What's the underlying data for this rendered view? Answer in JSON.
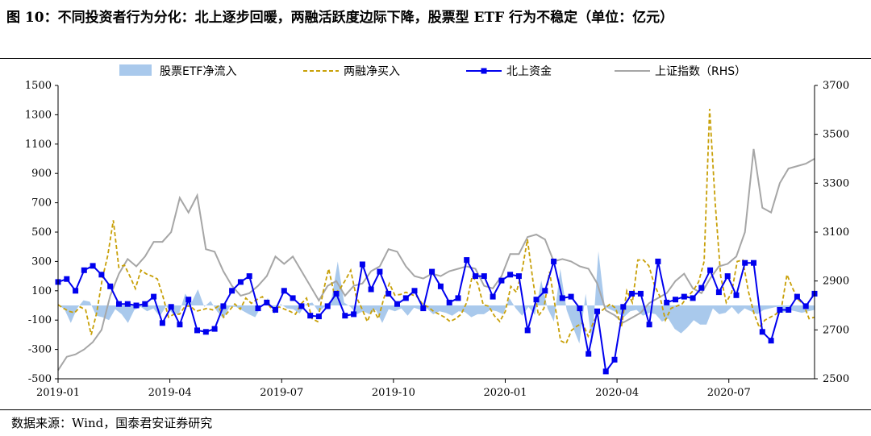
{
  "figure": {
    "title": "图 10：不同投资者行为分化：北上逐步回暖，两融活跃度边际下降，股票型 ETF 行为不稳定（单位：亿元）",
    "source": "数据来源：Wind，国泰君安证券研究"
  },
  "chart_data": {
    "type": "line",
    "title": "图 10：不同投资者行为分化：北上逐步回暖，两融活跃度边际下降，股票型 ETF 行为不稳定（单位：亿元）",
    "left_axis": {
      "ylim": [
        -500,
        1500
      ],
      "ticks": [
        -500,
        -300,
        -100,
        100,
        300,
        500,
        700,
        900,
        1100,
        1300,
        1500
      ]
    },
    "right_axis": {
      "ylim": [
        2500,
        3700
      ],
      "ticks": [
        2500,
        2700,
        2900,
        3100,
        3300,
        3500,
        3700
      ],
      "label": "RHS"
    },
    "x_axis": {
      "ticks": [
        "2019-01",
        "2019-04",
        "2019-07",
        "2019-10",
        "2020-01",
        "2020-04",
        "2020-07"
      ],
      "start": "2019-01",
      "period": "weekly"
    },
    "grid": false,
    "legend_position": "top",
    "series": [
      {
        "name": "股票ETF净流入",
        "style": "area",
        "axis": "left",
        "color": "#a9c9ec",
        "values": [
          5,
          -25,
          -120,
          -20,
          35,
          25,
          -70,
          -80,
          -100,
          -25,
          -60,
          -120,
          -30,
          -10,
          -40,
          -20,
          -75,
          -5,
          -55,
          -60,
          80,
          20,
          110,
          -10,
          30,
          -40,
          -90,
          -10,
          -10,
          -35,
          -60,
          -80,
          -5,
          50,
          -60,
          10,
          -20,
          -25,
          -55,
          10,
          20,
          -45,
          -5,
          40,
          300,
          20,
          -10,
          -60,
          -40,
          -60,
          -30,
          -120,
          -25,
          -40,
          -20,
          -70,
          -15,
          -30,
          -20,
          -60,
          -40,
          -50,
          -70,
          -40,
          -45,
          -80,
          -60,
          -60,
          -30,
          -40,
          -60,
          50,
          -20,
          -70,
          -10,
          -65,
          170,
          -20,
          -110,
          250,
          -30,
          -150,
          -260,
          80,
          -270,
          370,
          -10,
          -30,
          -50,
          -80,
          -40,
          -30,
          -70,
          -50,
          -60,
          -110,
          -90,
          -160,
          -190,
          -150,
          -100,
          -130,
          -130,
          -20,
          -60,
          -50,
          -10,
          -60,
          -20,
          -40,
          -60,
          -30,
          -20,
          -10,
          -50,
          -30,
          -40,
          -50,
          -40,
          -30
        ]
      },
      {
        "name": "两融净买入",
        "style": "dashed",
        "axis": "left",
        "color": "#c8a008",
        "values": [
          5,
          -20,
          -40,
          -50,
          -10,
          -30,
          -200,
          -50,
          180,
          340,
          580,
          260,
          275,
          200,
          115,
          240,
          215,
          200,
          180,
          60,
          -80,
          -60,
          -60,
          -5,
          -5,
          -40,
          -30,
          -20,
          -30,
          -5,
          -80,
          -35,
          10,
          -25,
          50,
          15,
          40,
          60,
          10,
          -40,
          -10,
          -25,
          -40,
          -60,
          10,
          50,
          -90,
          -110,
          90,
          250,
          80,
          110,
          170,
          240,
          60,
          -20,
          -110,
          -20,
          -90,
          50,
          150,
          70,
          75,
          90,
          75,
          60,
          10,
          -10,
          -40,
          -60,
          -80,
          -110,
          -90,
          -60,
          20,
          200,
          150,
          5,
          -5,
          -70,
          -110,
          -40,
          130,
          90,
          230,
          450,
          170,
          -70,
          -20,
          230,
          0,
          -240,
          -260,
          -170,
          -140,
          -120,
          -210,
          -110,
          -50,
          -20,
          10,
          -20,
          -150,
          100,
          20,
          310,
          310,
          270,
          140,
          60,
          -100,
          -20,
          -5,
          10,
          60,
          100,
          160,
          300,
          1340,
          700,
          200,
          20,
          90,
          300,
          310,
          100,
          -50,
          -150,
          -100,
          -80,
          -60,
          -20,
          210,
          120,
          40,
          10,
          -90,
          -80
        ]
      },
      {
        "name": "北上资金",
        "style": "line-marker",
        "axis": "left",
        "color": "#0000ee",
        "values": [
          160,
          180,
          100,
          240,
          270,
          210,
          130,
          10,
          10,
          0,
          10,
          60,
          -120,
          -10,
          -130,
          40,
          -170,
          -180,
          -160,
          -5,
          100,
          160,
          200,
          -20,
          20,
          -30,
          100,
          50,
          -5,
          -70,
          -75,
          -5,
          80,
          -70,
          -60,
          280,
          110,
          230,
          80,
          10,
          50,
          100,
          -20,
          230,
          130,
          20,
          50,
          310,
          200,
          200,
          60,
          170,
          210,
          200,
          -170,
          40,
          100,
          300,
          50,
          60,
          -20,
          -330,
          -40,
          -450,
          -370,
          -10,
          80,
          80,
          -130,
          300,
          20,
          40,
          60,
          50,
          120,
          240,
          90,
          200,
          70,
          290,
          290,
          -180,
          -240,
          -30,
          -30,
          60,
          -5,
          80
        ]
      },
      {
        "name": "上证指数（RHS）",
        "style": "line",
        "axis": "right",
        "color": "#a6a6a6",
        "values": [
          2535,
          2590,
          2600,
          2620,
          2650,
          2700,
          2840,
          2930,
          2990,
          2960,
          3000,
          3060,
          3060,
          3100,
          3240,
          3180,
          3250,
          3030,
          3020,
          2940,
          2880,
          2840,
          2850,
          2880,
          2920,
          3000,
          2970,
          3000,
          2940,
          2880,
          2820,
          2880,
          2900,
          2840,
          2880,
          2890,
          2940,
          2960,
          3030,
          3020,
          2960,
          2920,
          2910,
          2930,
          2920,
          2940,
          2950,
          2960,
          2950,
          2880,
          2870,
          2920,
          3010,
          3010,
          3080,
          3090,
          3070,
          2980,
          2990,
          2980,
          2960,
          2950,
          2890,
          2780,
          2760,
          2730,
          2750,
          2770,
          2810,
          2830,
          2850,
          2900,
          2930,
          2870,
          2850,
          2910,
          2960,
          2970,
          3000,
          3100,
          3440,
          3200,
          3180,
          3300,
          3360,
          3370,
          3380,
          3400
        ]
      }
    ]
  }
}
